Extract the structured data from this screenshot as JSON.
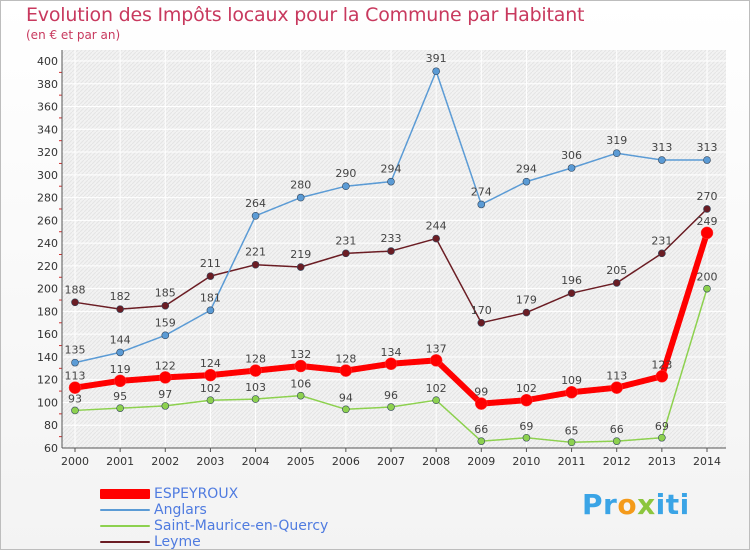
{
  "title": "Evolution des Impôts locaux pour la Commune par Habitant",
  "subtitle": "(en € et par an)",
  "logo": {
    "t1": "Pr",
    "t2": "o",
    "t3": "x",
    "t4": "iti"
  },
  "chart_data": {
    "type": "line",
    "x": [
      "2000",
      "2001",
      "2002",
      "2003",
      "2004",
      "2005",
      "2006",
      "2007",
      "2008",
      "2009",
      "2010",
      "2011",
      "2012",
      "2013",
      "2014"
    ],
    "ylim": [
      60,
      400
    ],
    "yticks": [
      60,
      80,
      100,
      120,
      140,
      160,
      180,
      200,
      220,
      240,
      260,
      280,
      300,
      320,
      340,
      360,
      380,
      400
    ],
    "grid": true,
    "legend_position": "bottom-left",
    "series": [
      {
        "name": "ESPEYROUX",
        "color": "#ff0000",
        "values": [
          113,
          119,
          122,
          124,
          128,
          132,
          128,
          134,
          137,
          99,
          102,
          109,
          113,
          123,
          249
        ]
      },
      {
        "name": "Anglars",
        "color": "#5b9bd5",
        "values": [
          135,
          144,
          159,
          181,
          264,
          280,
          290,
          294,
          391,
          274,
          294,
          306,
          319,
          313,
          313
        ]
      },
      {
        "name": "Saint-Maurice-en-Quercy",
        "color": "#8dd14f",
        "values": [
          93,
          95,
          97,
          102,
          103,
          106,
          94,
          96,
          102,
          66,
          69,
          65,
          66,
          69,
          200
        ]
      },
      {
        "name": "Leyme",
        "color": "#6b1d24",
        "values": [
          188,
          182,
          185,
          211,
          221,
          219,
          231,
          233,
          244,
          170,
          179,
          196,
          205,
          231,
          270
        ]
      }
    ]
  }
}
